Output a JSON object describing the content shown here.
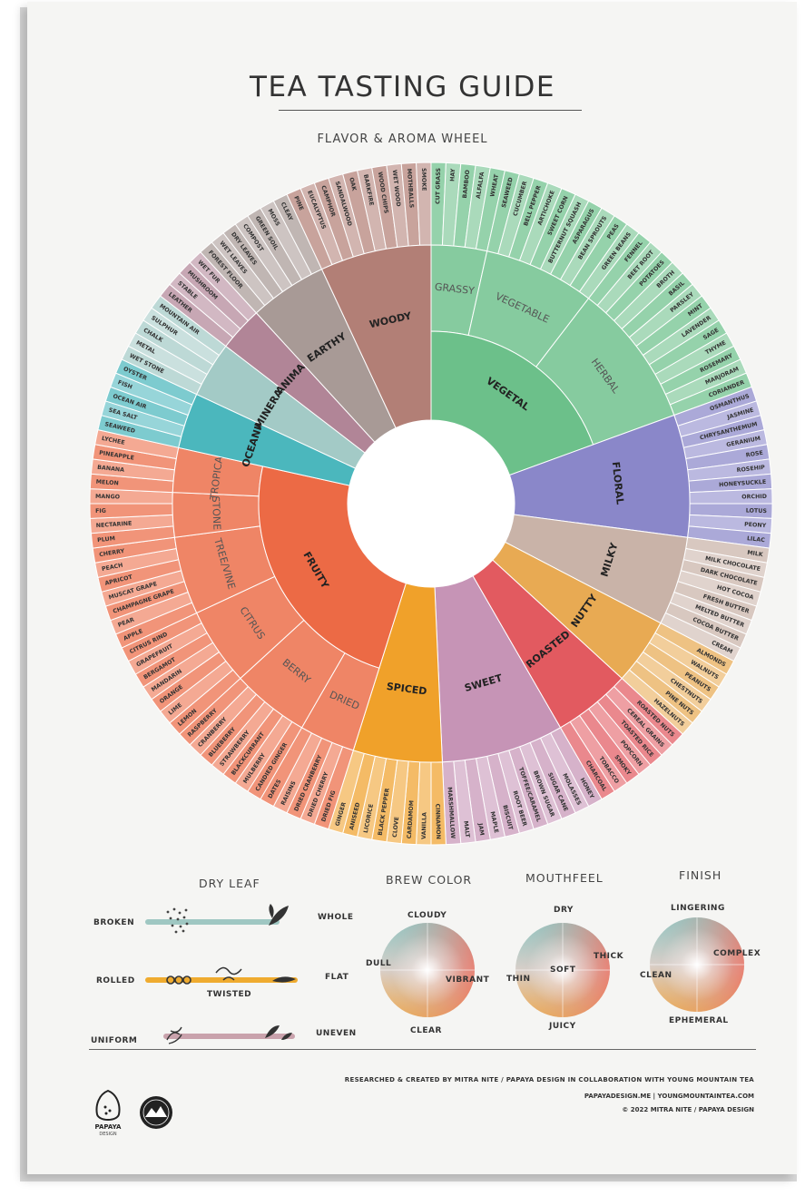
{
  "title": "TEA TASTING GUIDE",
  "subtitle": "FLAVOR & AROMA WHEEL",
  "wheel": {
    "categories": [
      {
        "name": "VEGETAL",
        "color": "#6cc08a",
        "subs": [
          {
            "name": "GRASSY",
            "items": [
              "CUT GRASS",
              "HAY",
              "BAMBOO",
              "ALFALFA",
              "WHEAT"
            ]
          },
          {
            "name": "VEGETABLE",
            "items": [
              "SEAWEED",
              "CUCUMBER",
              "BELL PEPPER",
              "ARTICHOKE",
              "SWEET CORN",
              "BUTTERNUT SQUASH",
              "ASPARAGUS",
              "BEAN SPROUTS",
              "PEAS",
              "GREEN BEANS"
            ]
          },
          {
            "name": "HERBAL",
            "items": [
              "FENNEL",
              "BEET ROOT",
              "POTATOES",
              "BROTH",
              "BASIL",
              "PARSLEY",
              "MINT",
              "LAVENDER",
              "SAGE",
              "THYME",
              "ROSEMARY",
              "MARJORAM",
              "CORIANDER"
            ]
          }
        ]
      },
      {
        "name": "FLORAL",
        "color": "#8a87c9",
        "subs": [
          {
            "name": "",
            "items": [
              "OSMANTHUS",
              "JASMINE",
              "CHRYSANTHEMUM",
              "GERANIUM",
              "ROSE",
              "ROSEHIP",
              "HONEYSUCKLE",
              "ORCHID",
              "LOTUS",
              "PEONY",
              "LILAC"
            ]
          }
        ]
      },
      {
        "name": "MILKY",
        "color": "#c9b3a8",
        "subs": [
          {
            "name": "",
            "items": [
              "MILK",
              "MILK CHOCOLATE",
              "DARK CHOCOLATE",
              "HOT COCOA",
              "FRESH BUTTER",
              "MELTED BUTTER",
              "COCOA BUTTER",
              "CREAM"
            ]
          }
        ]
      },
      {
        "name": "NUTTY",
        "color": "#e8aa53",
        "subs": [
          {
            "name": "",
            "items": [
              "ALMONDS",
              "WALNUTS",
              "PEANUTS",
              "CHESTNUTS",
              "PINE NUTS",
              "HAZELNUTS"
            ]
          }
        ]
      },
      {
        "name": "ROASTED",
        "color": "#e25a60",
        "subs": [
          {
            "name": "",
            "items": [
              "ROASTED NUTS",
              "CEREAL GRAINS",
              "TOASTED RICE",
              "POPCORN",
              "SMOKY",
              "TOBACCO",
              "CHARCOAL"
            ]
          }
        ]
      },
      {
        "name": "SWEET",
        "color": "#c694b6",
        "subs": [
          {
            "name": "",
            "items": [
              "HONEY",
              "MOLASSES",
              "SUGAR CANE",
              "BROWN SUGAR",
              "TOFFEE/CARAMEL",
              "ROOT BEER",
              "BISCUIT",
              "MAPLE",
              "JAM",
              "MALT",
              "MARSHMALLOW"
            ]
          }
        ]
      },
      {
        "name": "SPICED",
        "color": "#f0a12a",
        "subs": [
          {
            "name": "",
            "items": [
              "CINNAMON",
              "VANILLA",
              "CARDAMOM",
              "CLOVE",
              "BLACK PEPPER",
              "LICORICE",
              "ANISEED",
              "GINGER"
            ]
          }
        ]
      },
      {
        "name": "FRUITY",
        "color": "#ec6a45",
        "subs": [
          {
            "name": "DRIED",
            "items": [
              "DRIED FIG",
              "DRIED CHERRY",
              "DRIED CRANBERRY",
              "RAISINS",
              "DATES"
            ]
          },
          {
            "name": "BERRY",
            "items": [
              "CANDIED GINGER",
              "MULBERRY",
              "BLACKCURRANT",
              "STRAWBERRY",
              "BLUEBERRY",
              "CRANBERRY",
              "RASPBERRY"
            ]
          },
          {
            "name": "CITRUS",
            "items": [
              "LEMON",
              "LIME",
              "ORANGE",
              "MANDARIN",
              "BERGAMOT",
              "GRAPEFRUIT",
              "CITRUS RIND"
            ]
          },
          {
            "name": "TREE/VINE",
            "items": [
              "APPLE",
              "PEAR",
              "CHAMPAGNE GRAPE",
              "MUSCAT GRAPE",
              "APRICOT",
              "PEACH",
              "CHERRY"
            ]
          },
          {
            "name": "STONE",
            "items": [
              "PLUM",
              "NECTARINE",
              "FIG",
              "MANGO"
            ]
          },
          {
            "name": "TROPICAL",
            "items": [
              "MELON",
              "BANANA",
              "PINEAPPLE",
              "LYCHEE"
            ]
          }
        ]
      },
      {
        "name": "OCEANIC",
        "color": "#4bb7bd",
        "subs": [
          {
            "name": "",
            "items": [
              "SEAWEED",
              "SEA SALT",
              "OCEAN AIR",
              "FISH",
              "OYSTER"
            ]
          }
        ]
      },
      {
        "name": "MINERAL",
        "color": "#a3cac6",
        "subs": [
          {
            "name": "",
            "items": [
              "WET STONE",
              "METAL",
              "CHALK",
              "SULPHUR",
              "MOUNTAIN AIR"
            ]
          }
        ]
      },
      {
        "name": "ANIMAL",
        "color": "#b18597",
        "subs": [
          {
            "name": "",
            "items": [
              "LEATHER",
              "STABLE",
              "MUSHROOM",
              "WET FUR"
            ]
          }
        ]
      },
      {
        "name": "EARTHY",
        "color": "#a89a96",
        "subs": [
          {
            "name": "",
            "items": [
              "FOREST FLOOR",
              "WET LEAVES",
              "DRY LEAVES",
              "COMPOST",
              "GREEN SOIL",
              "MOSS",
              "CLEAY"
            ]
          }
        ]
      },
      {
        "name": "WOODY",
        "color": "#b27f76",
        "subs": [
          {
            "name": "",
            "items": [
              "PINE",
              "EUCALYPTUS",
              "CAMPHOR",
              "SANDALWOOD",
              "OAK",
              "BARKFIRE",
              "WOOD CHIPS",
              "WET WOOD",
              "MOTHBALLS",
              "SMOKE"
            ]
          }
        ]
      }
    ]
  },
  "dry_leaf": {
    "title": "DRY LEAF",
    "rows": [
      {
        "left": "BROKEN",
        "right": "WHOLE",
        "mid": ""
      },
      {
        "left": "ROLLED",
        "right": "FLAT",
        "mid": "TWISTED"
      },
      {
        "left": "UNIFORM",
        "right": "UNEVEN",
        "mid": ""
      }
    ]
  },
  "brew_color": {
    "title": "BREW COLOR",
    "top": "CLOUDY",
    "left": "DULL",
    "right": "VIBRANT",
    "bottom": "CLEAR",
    "center": ""
  },
  "mouthfeel": {
    "title": "MOUTHFEEL",
    "top": "DRY",
    "left": "THIN",
    "right": "THICK",
    "bottom": "JUICY",
    "center": "SOFT"
  },
  "finish": {
    "title": "FINISH",
    "top": "LINGERING",
    "left": "CLEAN",
    "right": "COMPLEX",
    "bottom": "EPHEMERAL",
    "center": ""
  },
  "footer": {
    "credit": "RESEARCHED & CREATED BY MITRA NITE / PAPAYA DESIGN IN COLLABORATION WITH YOUNG MOUNTAIN TEA",
    "sites": "PAPAYADESIGN.ME  |  YOUNGMOUNTAINTEA.COM",
    "copyright": "© 2022 MITRA NITE / PAPAYA DESIGN",
    "logo_text": "PAPAYA",
    "logo_sub": "DESIGN"
  }
}
